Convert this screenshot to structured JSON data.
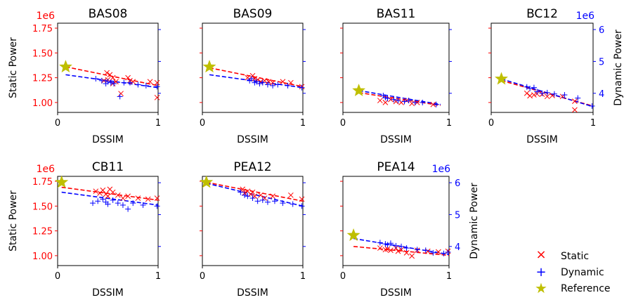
{
  "chart_data": [
    {
      "type": "scatter",
      "title": "BAS08",
      "xlabel": "DSSIM",
      "ylabel": "Static Power",
      "y_offset_label": "1e6",
      "xlim": [
        0,
        1
      ],
      "ylim": [
        0.9,
        1.8
      ],
      "xticks": [
        "0",
        "1"
      ],
      "yticks": [
        "1.00",
        "1.25",
        "1.50",
        "1.75"
      ],
      "y2_visible": false,
      "static": [
        [
          0.49,
          1.3
        ],
        [
          0.52,
          1.28
        ],
        [
          0.55,
          1.25
        ],
        [
          0.5,
          1.23
        ],
        [
          0.46,
          1.22
        ],
        [
          0.58,
          1.21
        ],
        [
          0.63,
          1.09
        ],
        [
          0.7,
          1.25
        ],
        [
          0.72,
          1.22
        ],
        [
          0.75,
          1.21
        ],
        [
          0.92,
          1.21
        ],
        [
          0.99,
          1.2
        ],
        [
          0.55,
          1.19
        ],
        [
          0.99,
          1.05
        ]
      ],
      "dynamic": [
        [
          0.38,
          1.24
        ],
        [
          0.44,
          1.22
        ],
        [
          0.5,
          1.21
        ],
        [
          0.53,
          1.2
        ],
        [
          0.56,
          1.19
        ],
        [
          0.62,
          1.06
        ],
        [
          0.66,
          1.2
        ],
        [
          0.72,
          1.2
        ],
        [
          0.8,
          1.18
        ],
        [
          0.88,
          1.17
        ],
        [
          0.99,
          1.16
        ],
        [
          0.48,
          1.19
        ]
      ],
      "reference": [
        0.08,
        1.36
      ],
      "fit_static": [
        [
          0.08,
          1.36
        ],
        [
          1.0,
          1.17
        ]
      ],
      "fit_dynamic": [
        [
          0.08,
          1.28
        ],
        [
          1.0,
          1.15
        ]
      ]
    },
    {
      "type": "scatter",
      "title": "BAS09",
      "xlabel": "DSSIM",
      "xlim": [
        0,
        1
      ],
      "ylim": [
        0.9,
        1.8
      ],
      "xticks": [
        "0",
        "1"
      ],
      "y2_visible": false,
      "static": [
        [
          0.45,
          1.25
        ],
        [
          0.5,
          1.27
        ],
        [
          0.52,
          1.24
        ],
        [
          0.55,
          1.23
        ],
        [
          0.58,
          1.21
        ],
        [
          0.62,
          1.22
        ],
        [
          0.66,
          1.21
        ],
        [
          0.7,
          1.2
        ],
        [
          0.8,
          1.21
        ],
        [
          0.88,
          1.2
        ],
        [
          0.99,
          1.16
        ]
      ],
      "dynamic": [
        [
          0.47,
          1.22
        ],
        [
          0.49,
          1.24
        ],
        [
          0.52,
          1.2
        ],
        [
          0.54,
          1.21
        ],
        [
          0.57,
          1.19
        ],
        [
          0.6,
          1.2
        ],
        [
          0.65,
          1.18
        ],
        [
          0.7,
          1.17
        ],
        [
          0.75,
          1.18
        ],
        [
          0.85,
          1.17
        ],
        [
          0.99,
          1.15
        ]
      ],
      "reference": [
        0.07,
        1.36
      ],
      "fit_static": [
        [
          0.07,
          1.35
        ],
        [
          1.0,
          1.16
        ]
      ],
      "fit_dynamic": [
        [
          0.07,
          1.28
        ],
        [
          1.0,
          1.15
        ]
      ]
    },
    {
      "type": "scatter",
      "title": "BAS11",
      "xlabel": "DSSIM",
      "xlim": [
        0,
        1
      ],
      "ylim": [
        0.9,
        1.8
      ],
      "xticks": [
        "0",
        "1"
      ],
      "y2_visible": false,
      "static": [
        [
          0.35,
          1.02
        ],
        [
          0.4,
          1.0
        ],
        [
          0.45,
          1.03
        ],
        [
          0.5,
          1.01
        ],
        [
          0.55,
          1.0
        ],
        [
          0.6,
          1.02
        ],
        [
          0.65,
          0.99
        ],
        [
          0.7,
          1.0
        ],
        [
          0.85,
          0.98
        ]
      ],
      "dynamic": [
        [
          0.38,
          1.07
        ],
        [
          0.4,
          1.05
        ],
        [
          0.42,
          1.04
        ],
        [
          0.48,
          1.03
        ],
        [
          0.52,
          1.02
        ],
        [
          0.58,
          1.01
        ],
        [
          0.62,
          1.02
        ],
        [
          0.68,
          1.0
        ],
        [
          0.75,
          1.0
        ],
        [
          0.88,
          0.98
        ]
      ],
      "reference": [
        0.15,
        1.12
      ],
      "fit_static": [
        [
          0.15,
          1.1
        ],
        [
          0.92,
          0.97
        ]
      ],
      "fit_dynamic": [
        [
          0.15,
          1.12
        ],
        [
          0.92,
          0.98
        ]
      ]
    },
    {
      "type": "scatter",
      "title": "BC12",
      "xlabel": "DSSIM",
      "xlim": [
        0,
        1
      ],
      "y2lim": [
        3.4,
        6.2
      ],
      "xticks": [
        "0",
        "1"
      ],
      "y2label": "Dynamic Power",
      "y2_offset_label": "1e6",
      "y2ticks": [
        "4",
        "5",
        "6"
      ],
      "y2_visible": true,
      "static": [
        [
          0.35,
          4.0
        ],
        [
          0.38,
          3.92
        ],
        [
          0.42,
          3.95
        ],
        [
          0.45,
          3.98
        ],
        [
          0.5,
          3.97
        ],
        [
          0.55,
          3.9
        ],
        [
          0.6,
          3.93
        ],
        [
          0.7,
          3.9
        ],
        [
          0.82,
          3.75
        ],
        [
          0.82,
          3.48
        ]
      ],
      "dynamic": [
        [
          0.35,
          4.2
        ],
        [
          0.38,
          4.15
        ],
        [
          0.42,
          4.18
        ],
        [
          0.45,
          4.05
        ],
        [
          0.5,
          4.0
        ],
        [
          0.55,
          4.02
        ],
        [
          0.62,
          3.98
        ],
        [
          0.72,
          3.95
        ],
        [
          0.85,
          3.85
        ],
        [
          0.99,
          3.6
        ]
      ],
      "reference": [
        0.1,
        4.45
      ],
      "fit_static": [
        [
          0.1,
          4.4
        ],
        [
          1.0,
          3.6
        ]
      ],
      "fit_dynamic": [
        [
          0.1,
          4.45
        ],
        [
          1.0,
          3.58
        ]
      ]
    },
    {
      "type": "scatter",
      "title": "CB11",
      "xlabel": "DSSIM",
      "ylabel": "Static Power",
      "y_offset_label": "1e6",
      "xlim": [
        0,
        1
      ],
      "ylim": [
        0.9,
        1.8
      ],
      "xticks": [
        "0",
        "1"
      ],
      "yticks": [
        "1.00",
        "1.25",
        "1.50",
        "1.75"
      ],
      "y2_visible": false,
      "static": [
        [
          0.38,
          1.65
        ],
        [
          0.42,
          1.63
        ],
        [
          0.45,
          1.66
        ],
        [
          0.48,
          1.62
        ],
        [
          0.5,
          1.6
        ],
        [
          0.52,
          1.67
        ],
        [
          0.55,
          1.64
        ],
        [
          0.6,
          1.61
        ],
        [
          0.65,
          1.58
        ],
        [
          0.7,
          1.6
        ],
        [
          0.8,
          1.58
        ],
        [
          0.9,
          1.57
        ],
        [
          0.99,
          1.58
        ]
      ],
      "dynamic": [
        [
          0.35,
          1.53
        ],
        [
          0.4,
          1.55
        ],
        [
          0.45,
          1.57
        ],
        [
          0.48,
          1.54
        ],
        [
          0.5,
          1.52
        ],
        [
          0.55,
          1.56
        ],
        [
          0.6,
          1.53
        ],
        [
          0.65,
          1.51
        ],
        [
          0.7,
          1.47
        ],
        [
          0.75,
          1.53
        ],
        [
          0.85,
          1.51
        ],
        [
          0.99,
          1.5
        ]
      ],
      "reference": [
        0.04,
        1.74
      ],
      "fit_static": [
        [
          0.04,
          1.69
        ],
        [
          1.0,
          1.56
        ]
      ],
      "fit_dynamic": [
        [
          0.04,
          1.64
        ],
        [
          1.0,
          1.51
        ]
      ]
    },
    {
      "type": "scatter",
      "title": "PEA12",
      "xlabel": "DSSIM",
      "xlim": [
        0,
        1
      ],
      "ylim": [
        0.9,
        1.8
      ],
      "xticks": [
        "0",
        "1"
      ],
      "y2_visible": false,
      "static": [
        [
          0.4,
          1.67
        ],
        [
          0.42,
          1.63
        ],
        [
          0.45,
          1.65
        ],
        [
          0.48,
          1.62
        ],
        [
          0.5,
          1.64
        ],
        [
          0.52,
          1.6
        ],
        [
          0.58,
          1.61
        ],
        [
          0.62,
          1.58
        ],
        [
          0.7,
          1.6
        ],
        [
          0.88,
          1.61
        ],
        [
          0.99,
          1.57
        ]
      ],
      "dynamic": [
        [
          0.38,
          1.64
        ],
        [
          0.42,
          1.61
        ],
        [
          0.45,
          1.6
        ],
        [
          0.5,
          1.58
        ],
        [
          0.55,
          1.55
        ],
        [
          0.6,
          1.56
        ],
        [
          0.65,
          1.54
        ],
        [
          0.72,
          1.55
        ],
        [
          0.8,
          1.53
        ],
        [
          0.9,
          1.52
        ],
        [
          0.99,
          1.5
        ]
      ],
      "reference": [
        0.04,
        1.74
      ],
      "fit_static": [
        [
          0.04,
          1.74
        ],
        [
          1.0,
          1.55
        ]
      ],
      "fit_dynamic": [
        [
          0.04,
          1.73
        ],
        [
          1.0,
          1.5
        ]
      ]
    },
    {
      "type": "scatter",
      "title": "PEA14",
      "xlabel": "DSSIM",
      "xlim": [
        0,
        1
      ],
      "y2lim": [
        3.4,
        6.2
      ],
      "xticks": [
        "0",
        "1"
      ],
      "y2label": "Dynamic Power",
      "y2_offset_label": "1e6",
      "y2ticks": [
        "4",
        "5",
        "6"
      ],
      "y2_visible": true,
      "static": [
        [
          0.35,
          3.95
        ],
        [
          0.4,
          3.9
        ],
        [
          0.42,
          3.92
        ],
        [
          0.45,
          3.88
        ],
        [
          0.5,
          3.95
        ],
        [
          0.52,
          3.85
        ],
        [
          0.55,
          3.9
        ],
        [
          0.6,
          3.8
        ],
        [
          0.65,
          3.7
        ],
        [
          0.7,
          3.88
        ],
        [
          0.8,
          3.85
        ],
        [
          0.9,
          3.83
        ],
        [
          0.99,
          3.85
        ]
      ],
      "dynamic": [
        [
          0.35,
          4.12
        ],
        [
          0.4,
          4.08
        ],
        [
          0.42,
          4.05
        ],
        [
          0.45,
          4.1
        ],
        [
          0.5,
          4.02
        ],
        [
          0.55,
          4.0
        ],
        [
          0.6,
          3.95
        ],
        [
          0.7,
          3.9
        ],
        [
          0.78,
          3.88
        ],
        [
          0.85,
          3.8
        ],
        [
          0.95,
          3.78
        ],
        [
          0.99,
          3.82
        ]
      ],
      "reference": [
        0.1,
        4.35
      ],
      "fit_static": [
        [
          0.1,
          4.0
        ],
        [
          1.0,
          3.72
        ]
      ],
      "fit_dynamic": [
        [
          0.1,
          4.25
        ],
        [
          1.0,
          3.75
        ]
      ]
    }
  ],
  "legend": {
    "placement": "bottom-right",
    "static_label": "Static",
    "dynamic_label": "Dynamic",
    "reference_label": "Reference"
  },
  "colors": {
    "static": "#ff0000",
    "dynamic": "#0000ff",
    "reference": "#bfbf00",
    "axis": "#000000"
  }
}
